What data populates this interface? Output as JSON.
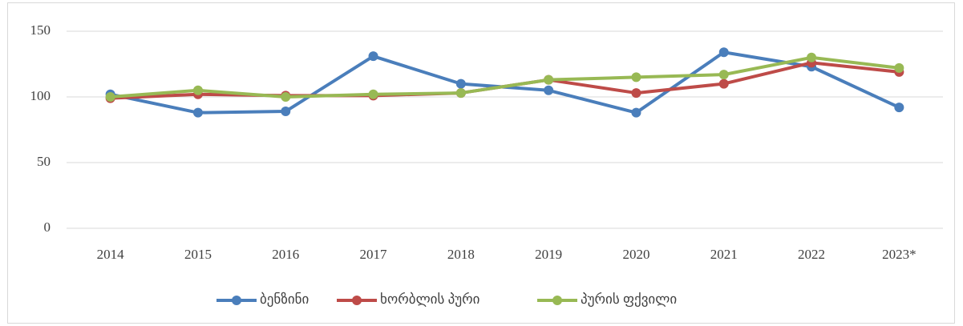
{
  "chart_data": {
    "type": "line",
    "categories": [
      "2014",
      "2015",
      "2016",
      "2017",
      "2018",
      "2019",
      "2020",
      "2021",
      "2022",
      "2023*"
    ],
    "series": [
      {
        "name": "ბენზინი",
        "color": "#4a7ebb",
        "values": [
          102,
          88,
          89,
          131,
          110,
          105,
          88,
          134,
          123,
          92
        ]
      },
      {
        "name": "ხორბლის პური",
        "color": "#be4b48",
        "values": [
          99,
          102,
          101,
          101,
          103,
          113,
          103,
          110,
          126,
          119
        ]
      },
      {
        "name": "პურის ფქვილი",
        "color": "#98b954",
        "values": [
          100,
          105,
          100,
          102,
          103,
          113,
          115,
          117,
          130,
          122
        ]
      }
    ],
    "ylim": [
      0,
      150
    ],
    "yticks": [
      0,
      50,
      100,
      150
    ],
    "grid": true,
    "legend": "bottom"
  }
}
